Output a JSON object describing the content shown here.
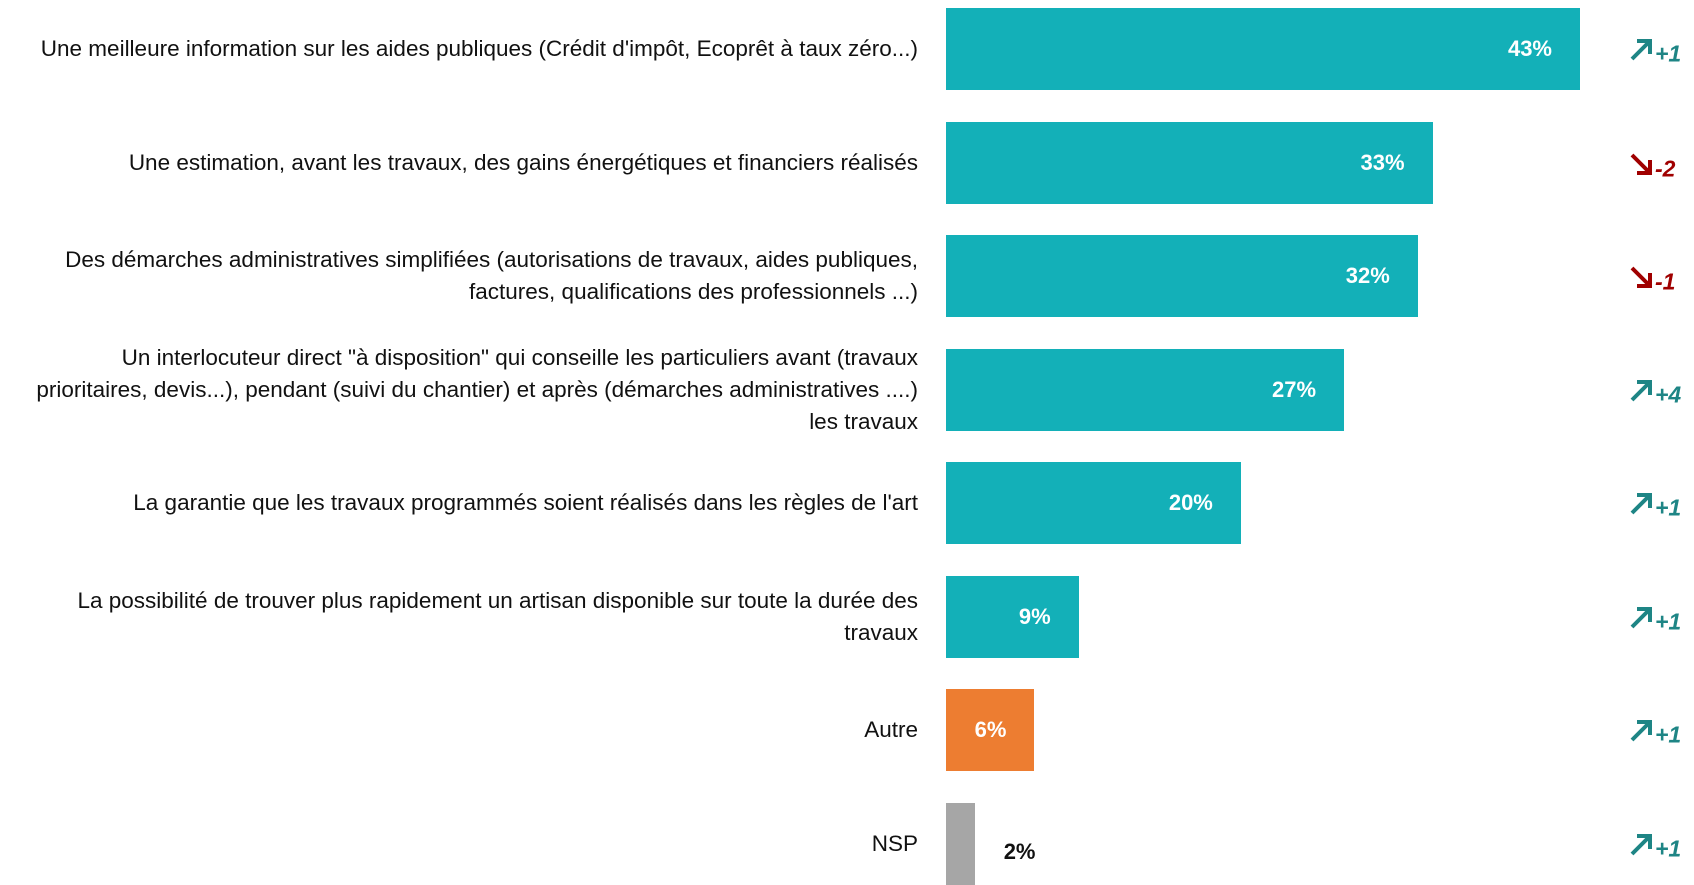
{
  "chart_data": {
    "type": "bar",
    "orientation": "horizontal",
    "categories": [
      "Une meilleure information sur les aides publiques (Crédit d'impôt, Ecoprêt à taux zéro...)",
      "Une estimation, avant les travaux, des gains énergétiques et financiers réalisés",
      "Des démarches administratives simplifiées (autorisations de travaux, aides publiques, factures, qualifications des professionnels ...)",
      "Un interlocuteur direct \"à disposition\" qui conseille les particuliers avant (travaux prioritaires, devis...), pendant (suivi du chantier) et après (démarches administratives ....) les travaux",
      "La garantie que les travaux programmés soient réalisés dans les règles de l'art",
      "La possibilité de trouver plus rapidement un artisan disponible sur toute la durée des travaux",
      "Autre",
      "NSP"
    ],
    "values": [
      43,
      33,
      32,
      27,
      20,
      9,
      6,
      2
    ],
    "value_labels": [
      "43%",
      "33%",
      "32%",
      "27%",
      "20%",
      "9%",
      "6%",
      "2%"
    ],
    "colors": [
      "#13b0b8",
      "#13b0b8",
      "#13b0b8",
      "#13b0b8",
      "#13b0b8",
      "#13b0b8",
      "#ed7d31",
      "#a6a6a6"
    ],
    "changes": [
      1,
      -2,
      -1,
      4,
      1,
      1,
      1,
      1
    ],
    "change_labels": [
      "+1",
      "-2",
      "-1",
      "+4",
      "+1",
      "+1",
      "+1",
      "+1"
    ],
    "change_colors": {
      "up": "#1e8585",
      "down": "#a00000"
    },
    "xlim": [
      0,
      43
    ]
  }
}
